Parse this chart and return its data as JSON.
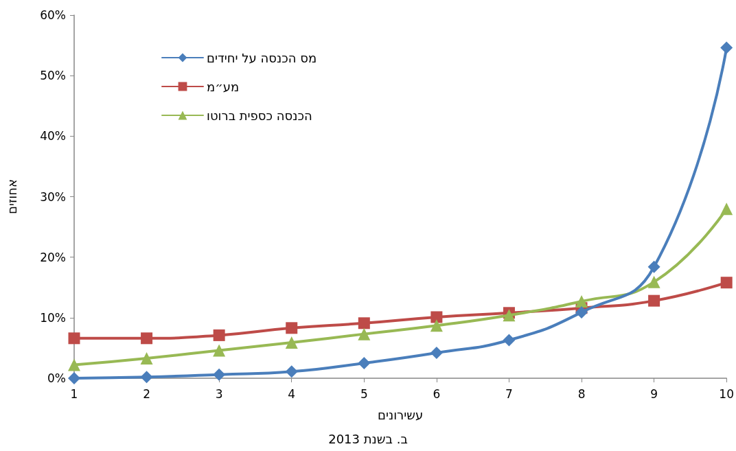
{
  "chart_data": {
    "type": "line",
    "xlabel": "עשירונים",
    "ylabel": "אחוזים",
    "annotations": [
      "ב. בשנת 2013"
    ],
    "x": [
      1,
      2,
      3,
      4,
      5,
      6,
      7,
      8,
      9,
      10
    ],
    "xlim": [
      1,
      10
    ],
    "xticks": [
      1,
      2,
      3,
      4,
      5,
      6,
      7,
      8,
      9,
      10
    ],
    "ylim": [
      0,
      60
    ],
    "yticks": [
      {
        "value": 0,
        "label": "0%"
      },
      {
        "value": 10,
        "label": "10%"
      },
      {
        "value": 20,
        "label": "20%"
      },
      {
        "value": 30,
        "label": "30%"
      },
      {
        "value": 40,
        "label": "40%"
      },
      {
        "value": 50,
        "label": "50%"
      },
      {
        "value": 60,
        "label": "60%"
      }
    ],
    "grid": false,
    "legend": "top left",
    "line_style": "solid",
    "series": [
      {
        "name": "מס הכנסה על יחידים",
        "color": "#4a7ebb",
        "marker": "diamond",
        "values": [
          0,
          0.2,
          0.6,
          1.1,
          2.5,
          4.2,
          6.3,
          10.9,
          18.4,
          54.6
        ]
      },
      {
        "name": "מע״מ",
        "color": "#be4b48",
        "marker": "square",
        "values": [
          6.6,
          6.6,
          7.1,
          8.3,
          9.1,
          10.1,
          10.8,
          11.6,
          12.8,
          15.8
        ]
      },
      {
        "name": "הכנסה כספית ברוטו",
        "color": "#98b954",
        "marker": "triangle",
        "values": [
          2.2,
          3.3,
          4.6,
          5.9,
          7.3,
          8.7,
          10.4,
          12.7,
          15.9,
          28.0
        ]
      }
    ]
  }
}
